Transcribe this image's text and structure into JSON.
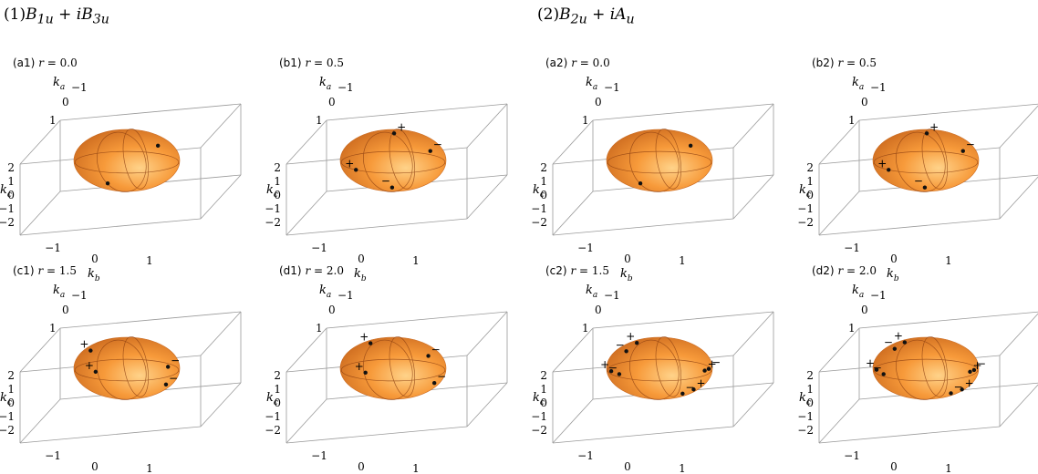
{
  "groups": [
    {
      "number": "(1)",
      "term1_base": "B",
      "term1_sub": "1u",
      "plus": "+",
      "term2_prefix": "i",
      "term2_base": "B",
      "term2_sub": "3u"
    },
    {
      "number": "(2)",
      "term1_base": "B",
      "term1_sub": "2u",
      "plus": "+",
      "term2_prefix": "i",
      "term2_base": "A",
      "term2_sub": "u"
    }
  ],
  "axes": {
    "ka_letter": "k",
    "ka_sub": "a",
    "kb_letter": "k",
    "kb_sub": "b",
    "kc_letter": "k",
    "kc_sub": "c",
    "ka_ticks": [
      "−1",
      "0",
      "1"
    ],
    "kb_ticks": [
      "−1",
      "0",
      "1"
    ],
    "kc_ticks": [
      "2",
      "1",
      "0",
      "−1",
      "−2"
    ]
  },
  "colors": {
    "sphere_light": "#ffd38a",
    "sphere_mid": "#f79a3a",
    "sphere_dark": "#c8661c",
    "box_line": "#9a9a9a",
    "mesh_line": "#8a3d10",
    "point": "#111111"
  },
  "panels": [
    {
      "tag": "(a1)",
      "r_var": "r",
      "eq": "=",
      "r_value": "0.0",
      "points": [
        {
          "u": 0.62,
          "v": -0.5,
          "sign": ""
        },
        {
          "u": -0.38,
          "v": 0.78,
          "sign": ""
        }
      ]
    },
    {
      "tag": "(b1)",
      "r_var": "r",
      "eq": "=",
      "r_value": "0.5",
      "points": [
        {
          "u": 0.02,
          "v": -0.92,
          "sign": "+"
        },
        {
          "u": 0.74,
          "v": -0.32,
          "sign": "−"
        },
        {
          "u": -0.74,
          "v": 0.32,
          "sign": "+"
        },
        {
          "u": -0.02,
          "v": 0.92,
          "sign": "−"
        }
      ]
    },
    {
      "tag": "(c1)",
      "r_var": "r",
      "eq": "=",
      "r_value": "1.5",
      "points": [
        {
          "u": -0.72,
          "v": -0.6,
          "sign": "+"
        },
        {
          "u": -0.62,
          "v": 0.12,
          "sign": "+"
        },
        {
          "u": 0.82,
          "v": -0.05,
          "sign": "−"
        },
        {
          "u": 0.78,
          "v": 0.55,
          "sign": "−"
        }
      ]
    },
    {
      "tag": "(d1)",
      "r_var": "r",
      "eq": "=",
      "r_value": "2.0",
      "points": [
        {
          "u": -0.45,
          "v": -0.85,
          "sign": "+"
        },
        {
          "u": -0.55,
          "v": 0.15,
          "sign": "+"
        },
        {
          "u": 0.7,
          "v": -0.42,
          "sign": "−"
        },
        {
          "u": 0.82,
          "v": 0.5,
          "sign": "−"
        }
      ]
    },
    {
      "tag": "(a2)",
      "r_var": "r",
      "eq": "=",
      "r_value": "0.0",
      "points": [
        {
          "u": 0.62,
          "v": -0.5,
          "sign": ""
        },
        {
          "u": -0.38,
          "v": 0.78,
          "sign": ""
        }
      ]
    },
    {
      "tag": "(b2)",
      "r_var": "r",
      "eq": "=",
      "r_value": "0.5",
      "points": [
        {
          "u": 0.02,
          "v": -0.92,
          "sign": "+"
        },
        {
          "u": 0.74,
          "v": -0.32,
          "sign": "−"
        },
        {
          "u": -0.74,
          "v": 0.32,
          "sign": "+"
        },
        {
          "u": -0.02,
          "v": 0.92,
          "sign": "−"
        }
      ]
    },
    {
      "tag": "(c2)",
      "r_var": "r",
      "eq": "=",
      "r_value": "1.5",
      "points": [
        {
          "u": -0.66,
          "v": -0.58,
          "sign": "−"
        },
        {
          "u": -0.45,
          "v": -0.86,
          "sign": "+"
        },
        {
          "u": -0.96,
          "v": 0.1,
          "sign": "+"
        },
        {
          "u": -0.8,
          "v": 0.2,
          "sign": "−"
        },
        {
          "u": 0.9,
          "v": 0.08,
          "sign": "+"
        },
        {
          "u": 0.98,
          "v": 0.02,
          "sign": "−"
        },
        {
          "u": 0.46,
          "v": 0.86,
          "sign": "−"
        },
        {
          "u": 0.68,
          "v": 0.72,
          "sign": "+"
        }
      ]
    },
    {
      "tag": "(d2)",
      "r_var": "r",
      "eq": "=",
      "r_value": "2.0",
      "points": [
        {
          "u": -0.62,
          "v": -0.66,
          "sign": "−"
        },
        {
          "u": -0.42,
          "v": -0.88,
          "sign": "+"
        },
        {
          "u": -0.98,
          "v": 0.05,
          "sign": "+"
        },
        {
          "u": -0.84,
          "v": 0.2,
          "sign": "−"
        },
        {
          "u": 0.88,
          "v": 0.12,
          "sign": "+"
        },
        {
          "u": 0.96,
          "v": 0.06,
          "sign": "−"
        },
        {
          "u": 0.5,
          "v": 0.85,
          "sign": "−"
        },
        {
          "u": 0.72,
          "v": 0.72,
          "sign": "+"
        }
      ]
    }
  ]
}
